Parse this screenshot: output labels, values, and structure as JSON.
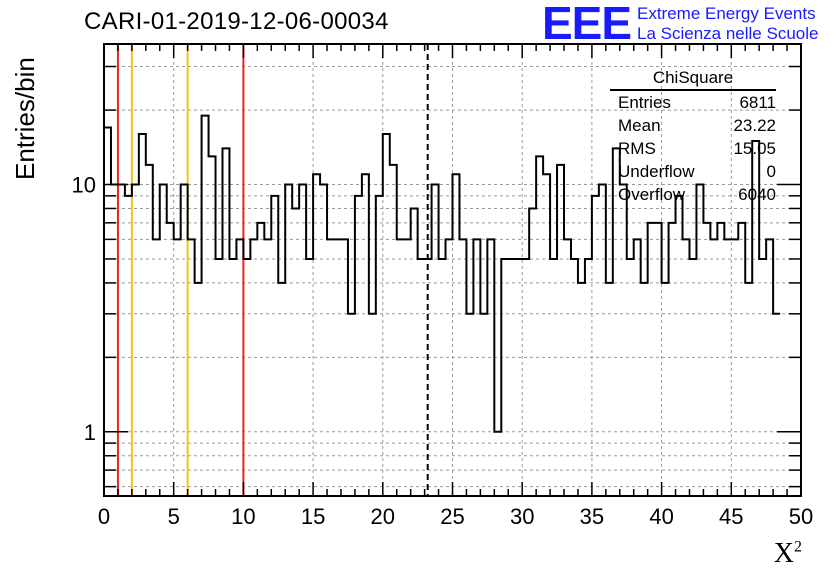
{
  "title": "CARI-01-2019-12-06-00034",
  "logo": {
    "mark": "EEE",
    "line1": "Extreme Energy Events",
    "line2": "La Scienza nelle Scuole",
    "color": "#1a1aff"
  },
  "stats": {
    "title": "ChiSquare",
    "rows": [
      {
        "label": "Entries",
        "value": "6811"
      },
      {
        "label": "Mean",
        "value": "23.22"
      },
      {
        "label": "RMS",
        "value": "15.05"
      },
      {
        "label": "Underflow",
        "value": "0"
      },
      {
        "label": "Overflow",
        "value": "6040"
      }
    ]
  },
  "chart_data": {
    "type": "histogram",
    "title": "CARI-01-2019-12-06-00034",
    "xlabel": "X",
    "xlabel_sup": "2",
    "ylabel": "Entries/bin",
    "xlim": [
      0,
      50
    ],
    "ylim": [
      0.55,
      37
    ],
    "yscale": "log",
    "grid": true,
    "bin_width": 0.5,
    "x_ticks": [
      0,
      5,
      10,
      15,
      20,
      25,
      30,
      35,
      40,
      45,
      50
    ],
    "y_ticks": [
      1,
      10
    ],
    "values": [
      17,
      10,
      10,
      9,
      10,
      16,
      12,
      6,
      10,
      7,
      6,
      10,
      6,
      4,
      19,
      13,
      5,
      14,
      5,
      6,
      5,
      6,
      7,
      6,
      9,
      4,
      10,
      8,
      10,
      5,
      11,
      10,
      6,
      6,
      6,
      3,
      9,
      11,
      3,
      9,
      16,
      12,
      6,
      6,
      8,
      5,
      5,
      10,
      5,
      6,
      11,
      6,
      3,
      6,
      3,
      6,
      1,
      5,
      5,
      5,
      5,
      8,
      13,
      11,
      5,
      12,
      6,
      5,
      4,
      5,
      9,
      10,
      4,
      14,
      10,
      5,
      6,
      4,
      7,
      7,
      4,
      7,
      9,
      6,
      5,
      10,
      7,
      6,
      7,
      6,
      6,
      7,
      4,
      15,
      5,
      6,
      3
    ],
    "vertical_lines": [
      {
        "x": 1,
        "color": "#e8261e",
        "style": "solid"
      },
      {
        "x": 2,
        "color": "#f2c21a",
        "style": "solid"
      },
      {
        "x": 6,
        "color": "#f2c21a",
        "style": "solid"
      },
      {
        "x": 10,
        "color": "#e8261e",
        "style": "solid"
      },
      {
        "x": 23.22,
        "color": "#000000",
        "style": "dashed"
      }
    ]
  }
}
